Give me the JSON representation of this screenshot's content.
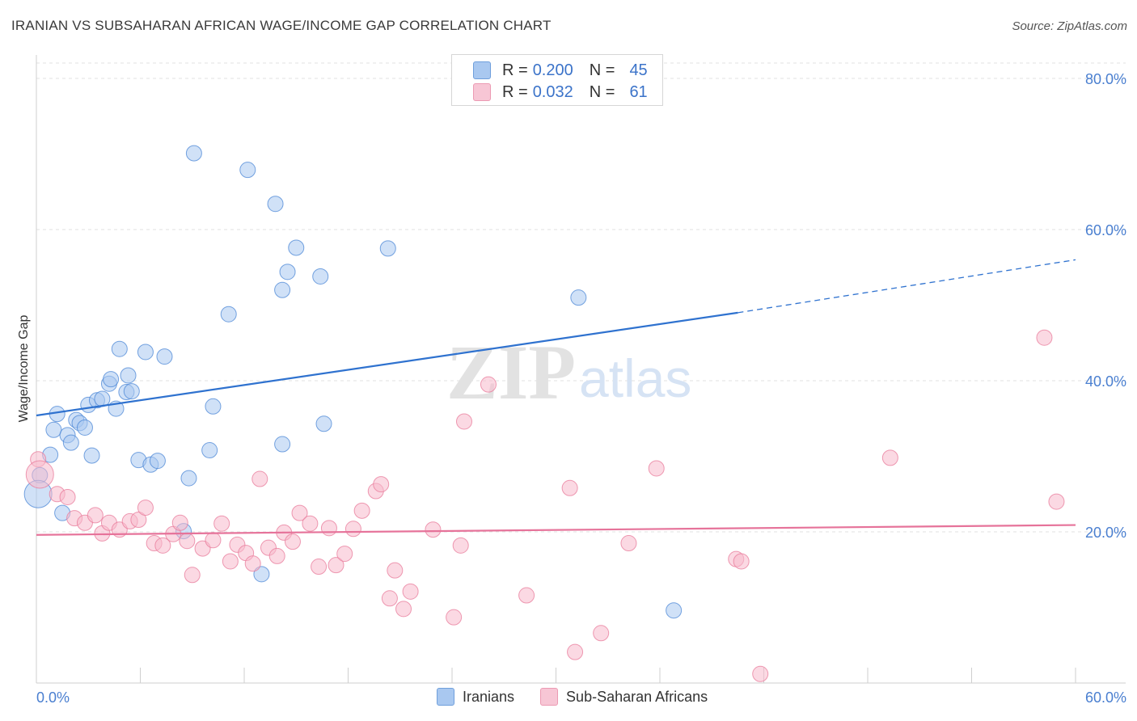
{
  "header": {
    "title": "IRANIAN VS SUBSAHARAN AFRICAN WAGE/INCOME GAP CORRELATION CHART",
    "source": "Source: ZipAtlas.com"
  },
  "legend": {
    "rows": [
      {
        "r_label": "R =",
        "r_value": "0.200",
        "n_label": "N =",
        "n_value": "45",
        "color": "#a9c8f0"
      },
      {
        "r_label": "R =",
        "r_value": "0.032",
        "n_label": "N =",
        "n_value": "61",
        "color": "#f7b9cc"
      }
    ]
  },
  "bottom_legend": {
    "items": [
      {
        "label": "Iranians",
        "color": "#a9c8f0"
      },
      {
        "label": "Sub-Saharan Africans",
        "color": "#f7b9cc"
      }
    ]
  },
  "watermark": {
    "zip": "ZIP",
    "atlas": "atlas"
  },
  "chart_data": {
    "type": "scatter",
    "title": "IRANIAN VS SUBSAHARAN AFRICAN WAGE/INCOME GAP CORRELATION CHART",
    "xlabel": "",
    "ylabel": "Wage/Income Gap",
    "xlim": [
      0,
      60
    ],
    "ylim": [
      0,
      85
    ],
    "x_tick_labels": [
      "0.0%",
      "60.0%"
    ],
    "y_ticks": [
      20,
      40,
      60,
      80
    ],
    "y_tick_labels": [
      "20.0%",
      "40.0%",
      "60.0%",
      "80.0%"
    ],
    "grid": true,
    "legend_position": "top-center",
    "series": [
      {
        "name": "Iranians",
        "color": "#4a86d6",
        "fill": "#a9c8f0",
        "trend": {
          "x0": 0,
          "y0": 35.4,
          "x1": 40.5,
          "y1": 49.0,
          "dash_x1": 60,
          "dash_y1": 56.0,
          "color": "#2f72cf"
        },
        "points": [
          [
            0.2,
            27.5,
            1
          ],
          [
            0.1,
            25.0,
            2
          ],
          [
            0.8,
            30.2,
            1
          ],
          [
            1.0,
            33.5,
            1
          ],
          [
            1.2,
            35.6,
            1
          ],
          [
            1.5,
            22.5,
            1
          ],
          [
            1.8,
            32.8,
            1
          ],
          [
            2.0,
            31.8,
            1
          ],
          [
            2.3,
            34.8,
            1
          ],
          [
            2.5,
            34.4,
            1
          ],
          [
            2.8,
            33.8,
            1
          ],
          [
            3.0,
            36.8,
            1
          ],
          [
            3.2,
            30.1,
            1
          ],
          [
            3.5,
            37.4,
            1
          ],
          [
            3.8,
            37.6,
            1
          ],
          [
            4.2,
            39.6,
            1
          ],
          [
            4.3,
            40.2,
            1
          ],
          [
            4.6,
            36.3,
            1
          ],
          [
            4.8,
            44.2,
            1
          ],
          [
            5.2,
            38.5,
            1
          ],
          [
            5.3,
            40.7,
            1
          ],
          [
            5.5,
            38.6,
            1
          ],
          [
            5.9,
            29.5,
            1
          ],
          [
            6.3,
            43.8,
            1
          ],
          [
            6.6,
            28.9,
            1
          ],
          [
            7.0,
            29.4,
            1
          ],
          [
            7.4,
            43.2,
            1
          ],
          [
            8.5,
            20.1,
            1
          ],
          [
            8.8,
            27.1,
            1
          ],
          [
            9.1,
            70.1,
            1
          ],
          [
            10.0,
            30.8,
            1
          ],
          [
            10.2,
            36.6,
            1
          ],
          [
            11.1,
            48.8,
            1
          ],
          [
            12.2,
            67.9,
            1
          ],
          [
            13.0,
            14.4,
            1
          ],
          [
            13.8,
            63.4,
            1
          ],
          [
            14.2,
            31.6,
            1
          ],
          [
            14.2,
            52.0,
            1
          ],
          [
            14.5,
            54.4,
            1
          ],
          [
            15.0,
            57.6,
            1
          ],
          [
            16.4,
            53.8,
            1
          ],
          [
            16.6,
            34.3,
            1
          ],
          [
            20.3,
            57.5,
            1
          ],
          [
            31.3,
            51.0,
            1
          ],
          [
            36.8,
            9.6,
            1
          ]
        ]
      },
      {
        "name": "Sub-Saharan Africans",
        "color": "#e8799a",
        "fill": "#f7b9cc",
        "trend": {
          "x0": 0,
          "y0": 19.6,
          "x1": 60,
          "y1": 20.9,
          "color": "#e6739a"
        },
        "points": [
          [
            0.1,
            29.6,
            1
          ],
          [
            0.2,
            27.6,
            2
          ],
          [
            1.2,
            25.0,
            1
          ],
          [
            1.8,
            24.6,
            1
          ],
          [
            2.2,
            21.8,
            1
          ],
          [
            2.8,
            21.2,
            1
          ],
          [
            3.4,
            22.2,
            1
          ],
          [
            3.8,
            19.8,
            1
          ],
          [
            4.2,
            21.2,
            1
          ],
          [
            4.8,
            20.3,
            1
          ],
          [
            5.4,
            21.4,
            1
          ],
          [
            5.9,
            21.6,
            1
          ],
          [
            6.3,
            23.2,
            1
          ],
          [
            6.8,
            18.5,
            1
          ],
          [
            7.3,
            18.2,
            1
          ],
          [
            7.9,
            19.7,
            1
          ],
          [
            8.3,
            21.2,
            1
          ],
          [
            8.7,
            18.8,
            1
          ],
          [
            9.0,
            14.3,
            1
          ],
          [
            9.6,
            17.8,
            1
          ],
          [
            10.2,
            18.9,
            1
          ],
          [
            10.7,
            21.1,
            1
          ],
          [
            11.2,
            16.1,
            1
          ],
          [
            11.6,
            18.3,
            1
          ],
          [
            12.1,
            17.2,
            1
          ],
          [
            12.5,
            15.8,
            1
          ],
          [
            12.9,
            27.0,
            1
          ],
          [
            13.4,
            17.9,
            1
          ],
          [
            13.9,
            16.8,
            1
          ],
          [
            14.3,
            19.9,
            1
          ],
          [
            14.8,
            18.7,
            1
          ],
          [
            15.2,
            22.5,
            1
          ],
          [
            15.8,
            21.1,
            1
          ],
          [
            16.3,
            15.4,
            1
          ],
          [
            16.9,
            20.5,
            1
          ],
          [
            17.3,
            15.6,
            1
          ],
          [
            17.8,
            17.1,
            1
          ],
          [
            18.3,
            20.4,
            1
          ],
          [
            18.8,
            22.8,
            1
          ],
          [
            19.6,
            25.4,
            1
          ],
          [
            19.9,
            26.3,
            1
          ],
          [
            20.4,
            11.2,
            1
          ],
          [
            20.7,
            14.9,
            1
          ],
          [
            21.2,
            9.8,
            1
          ],
          [
            21.6,
            12.1,
            1
          ],
          [
            22.9,
            20.3,
            1
          ],
          [
            24.1,
            8.7,
            1
          ],
          [
            24.5,
            18.2,
            1
          ],
          [
            24.7,
            34.6,
            1
          ],
          [
            26.1,
            39.5,
            1
          ],
          [
            28.3,
            11.6,
            1
          ],
          [
            30.8,
            25.8,
            1
          ],
          [
            31.1,
            4.1,
            1
          ],
          [
            32.6,
            6.6,
            1
          ],
          [
            34.2,
            18.5,
            1
          ],
          [
            35.8,
            28.4,
            1
          ],
          [
            40.4,
            16.4,
            1
          ],
          [
            40.7,
            16.1,
            1
          ],
          [
            41.8,
            1.2,
            1
          ],
          [
            49.3,
            29.8,
            1
          ],
          [
            58.2,
            45.7,
            1
          ],
          [
            58.9,
            24.0,
            1
          ]
        ]
      }
    ]
  }
}
